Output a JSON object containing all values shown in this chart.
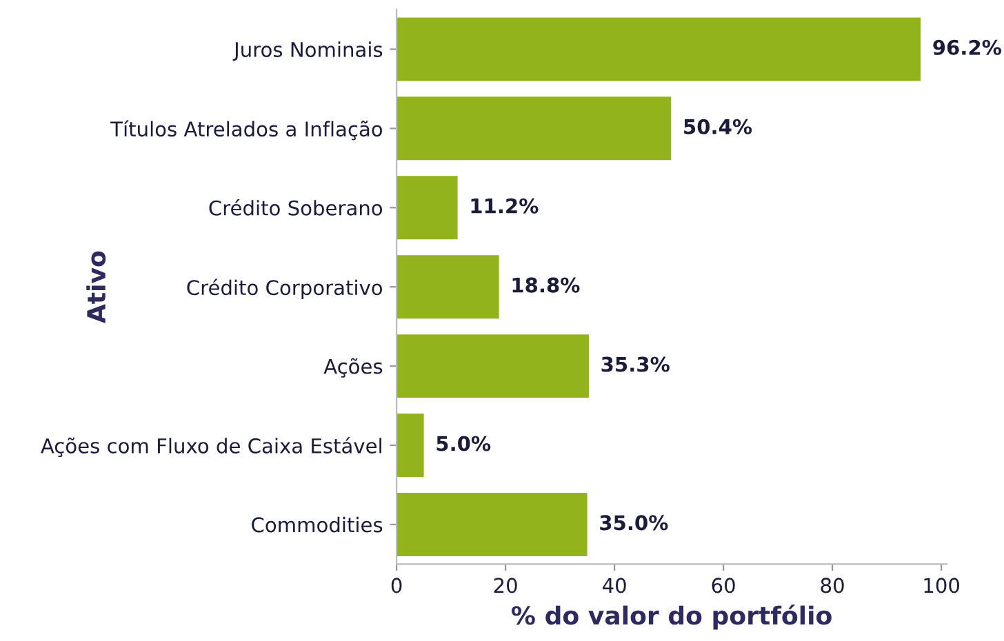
{
  "chart_data": {
    "type": "bar",
    "orientation": "horizontal",
    "xlabel": "% do valor do portfólio",
    "ylabel": "Ativo",
    "categories": [
      "Juros Nominais",
      "Títulos Atrelados a Inflação",
      "Crédito Soberano",
      "Crédito Corporativo",
      "Ações",
      "Ações com Fluxo de Caixa Estável",
      "Commodities"
    ],
    "values": [
      96.2,
      50.4,
      11.2,
      18.8,
      35.3,
      5.0,
      35.0
    ],
    "value_labels": [
      "96.2%",
      "50.4%",
      "11.2%",
      "18.8%",
      "35.3%",
      "5.0%",
      "35.0%"
    ],
    "color": "#93b31d",
    "xlim": [
      0,
      101
    ],
    "xticks": [
      0,
      20,
      40,
      60,
      80,
      100
    ],
    "grid": false,
    "legend": false
  }
}
